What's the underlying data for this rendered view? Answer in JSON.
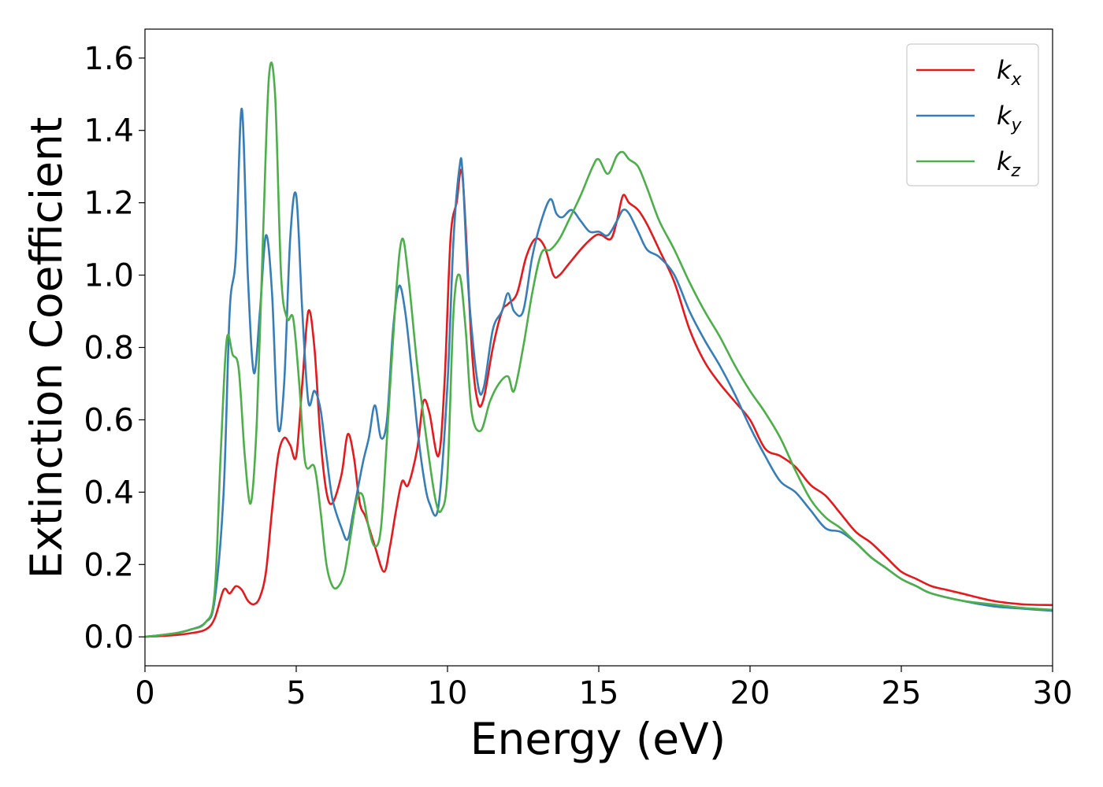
{
  "chart_data": {
    "type": "line",
    "title": "",
    "xlabel": "Energy (eV)",
    "ylabel": "Extinction Coefficient",
    "xlim": [
      0,
      30
    ],
    "ylim": [
      -0.08,
      1.68
    ],
    "xticks": [
      0,
      5,
      10,
      15,
      20,
      25,
      30
    ],
    "xtick_labels": [
      "0",
      "5",
      "10",
      "15",
      "20",
      "25",
      "30"
    ],
    "yticks": [
      0.0,
      0.2,
      0.4,
      0.6,
      0.8,
      1.0,
      1.2,
      1.4,
      1.6
    ],
    "ytick_labels": [
      "0.0",
      "0.2",
      "0.4",
      "0.6",
      "0.8",
      "1.0",
      "1.2",
      "1.4",
      "1.6"
    ],
    "grid": false,
    "legend_position": "top-right",
    "series": [
      {
        "name": "k_x",
        "legend_base": "k",
        "legend_sub": "x",
        "color": "#e41a1c",
        "x": [
          0,
          1.0,
          1.5,
          2.0,
          2.3,
          2.6,
          2.8,
          3.0,
          3.2,
          3.4,
          3.6,
          3.8,
          4.0,
          4.2,
          4.4,
          4.6,
          4.8,
          5.0,
          5.2,
          5.4,
          5.6,
          5.8,
          6.0,
          6.2,
          6.5,
          6.7,
          6.9,
          7.1,
          7.3,
          7.6,
          7.9,
          8.1,
          8.3,
          8.5,
          8.7,
          9.0,
          9.2,
          9.4,
          9.7,
          9.9,
          10.1,
          10.3,
          10.5,
          10.8,
          11.0,
          11.2,
          11.5,
          11.8,
          12.0,
          12.3,
          12.6,
          12.9,
          13.2,
          13.5,
          13.7,
          14.0,
          14.5,
          14.9,
          15.1,
          15.4,
          15.6,
          15.8,
          16.0,
          16.3,
          16.6,
          17.0,
          17.5,
          18.0,
          18.5,
          19.0,
          19.5,
          20.0,
          20.5,
          21.0,
          21.5,
          22.0,
          22.5,
          23.0,
          23.5,
          24.0,
          24.5,
          25.0,
          25.5,
          26.0,
          26.5,
          27.0,
          28.0,
          29.0,
          30.0
        ],
        "y": [
          0.0,
          0.005,
          0.01,
          0.02,
          0.05,
          0.13,
          0.12,
          0.14,
          0.13,
          0.1,
          0.09,
          0.11,
          0.18,
          0.35,
          0.5,
          0.55,
          0.53,
          0.5,
          0.7,
          0.9,
          0.8,
          0.55,
          0.4,
          0.37,
          0.45,
          0.56,
          0.5,
          0.37,
          0.33,
          0.25,
          0.18,
          0.25,
          0.35,
          0.43,
          0.42,
          0.52,
          0.65,
          0.62,
          0.5,
          0.7,
          1.1,
          1.2,
          1.27,
          0.8,
          0.65,
          0.66,
          0.8,
          0.9,
          0.92,
          0.95,
          1.05,
          1.1,
          1.08,
          1.0,
          1.0,
          1.03,
          1.08,
          1.11,
          1.11,
          1.1,
          1.15,
          1.22,
          1.2,
          1.18,
          1.14,
          1.07,
          0.98,
          0.85,
          0.76,
          0.7,
          0.65,
          0.6,
          0.52,
          0.5,
          0.47,
          0.42,
          0.39,
          0.34,
          0.29,
          0.26,
          0.22,
          0.18,
          0.16,
          0.14,
          0.13,
          0.12,
          0.1,
          0.09,
          0.088
        ]
      },
      {
        "name": "k_y",
        "legend_base": "k",
        "legend_sub": "y",
        "color": "#377eb8",
        "x": [
          0,
          1.0,
          1.5,
          2.0,
          2.3,
          2.6,
          2.8,
          3.0,
          3.2,
          3.4,
          3.6,
          3.8,
          4.0,
          4.2,
          4.4,
          4.6,
          4.8,
          5.0,
          5.2,
          5.4,
          5.6,
          5.8,
          6.0,
          6.2,
          6.5,
          6.7,
          6.9,
          7.2,
          7.4,
          7.6,
          7.8,
          8.0,
          8.2,
          8.4,
          8.6,
          8.8,
          9.0,
          9.2,
          9.4,
          9.7,
          10.0,
          10.2,
          10.4,
          10.5,
          10.7,
          11.0,
          11.2,
          11.5,
          11.8,
          12.0,
          12.2,
          12.5,
          12.8,
          13.1,
          13.4,
          13.6,
          13.8,
          14.1,
          14.4,
          14.7,
          15.0,
          15.3,
          15.6,
          15.8,
          16.0,
          16.3,
          16.6,
          17.0,
          17.5,
          18.0,
          18.5,
          19.0,
          19.5,
          20.0,
          20.5,
          21.0,
          21.5,
          22.0,
          22.5,
          23.0,
          23.5,
          24.0,
          24.5,
          25.0,
          25.5,
          26.0,
          27.0,
          28.0,
          29.0,
          30.0
        ],
        "y": [
          0.0,
          0.01,
          0.02,
          0.04,
          0.1,
          0.4,
          0.9,
          1.05,
          1.46,
          1.0,
          0.73,
          0.9,
          1.11,
          0.95,
          0.58,
          0.7,
          1.1,
          1.22,
          0.9,
          0.65,
          0.68,
          0.63,
          0.5,
          0.38,
          0.3,
          0.27,
          0.35,
          0.48,
          0.55,
          0.64,
          0.55,
          0.6,
          0.85,
          0.97,
          0.9,
          0.75,
          0.58,
          0.45,
          0.37,
          0.36,
          0.7,
          1.1,
          1.3,
          1.28,
          0.95,
          0.7,
          0.69,
          0.85,
          0.9,
          0.95,
          0.9,
          0.9,
          1.05,
          1.15,
          1.21,
          1.17,
          1.16,
          1.18,
          1.15,
          1.12,
          1.12,
          1.11,
          1.15,
          1.18,
          1.17,
          1.12,
          1.07,
          1.05,
          1.0,
          0.9,
          0.82,
          0.75,
          0.67,
          0.58,
          0.5,
          0.43,
          0.4,
          0.35,
          0.3,
          0.29,
          0.26,
          0.22,
          0.19,
          0.16,
          0.14,
          0.12,
          0.1,
          0.085,
          0.078,
          0.072
        ]
      },
      {
        "name": "k_z",
        "legend_base": "k",
        "legend_sub": "z",
        "color": "#4daf4a",
        "x": [
          0,
          1.0,
          1.5,
          2.0,
          2.3,
          2.5,
          2.7,
          2.9,
          3.1,
          3.3,
          3.5,
          3.7,
          3.9,
          4.1,
          4.3,
          4.5,
          4.7,
          4.9,
          5.1,
          5.3,
          5.6,
          5.8,
          6.0,
          6.2,
          6.4,
          6.6,
          6.8,
          7.0,
          7.2,
          7.4,
          7.6,
          7.8,
          8.0,
          8.3,
          8.5,
          8.7,
          9.0,
          9.3,
          9.6,
          9.8,
          10.0,
          10.2,
          10.4,
          10.6,
          10.8,
          11.1,
          11.4,
          11.7,
          12.0,
          12.2,
          12.5,
          12.8,
          13.1,
          13.4,
          13.7,
          14.0,
          14.4,
          14.8,
          15.0,
          15.3,
          15.6,
          15.8,
          16.0,
          16.3,
          16.6,
          17.0,
          17.5,
          18.0,
          18.5,
          19.0,
          19.5,
          20.0,
          20.5,
          21.0,
          21.5,
          22.0,
          22.5,
          23.0,
          23.5,
          24.0,
          24.5,
          25.0,
          25.5,
          26.0,
          27.0,
          28.0,
          29.0,
          30.0
        ],
        "y": [
          0.0,
          0.01,
          0.02,
          0.04,
          0.12,
          0.5,
          0.82,
          0.78,
          0.74,
          0.5,
          0.37,
          0.6,
          1.1,
          1.55,
          1.5,
          1.0,
          0.88,
          0.88,
          0.7,
          0.48,
          0.47,
          0.35,
          0.2,
          0.14,
          0.14,
          0.18,
          0.28,
          0.38,
          0.39,
          0.3,
          0.25,
          0.3,
          0.55,
          0.95,
          1.1,
          1.0,
          0.75,
          0.55,
          0.38,
          0.35,
          0.45,
          0.9,
          1.0,
          0.85,
          0.62,
          0.57,
          0.65,
          0.7,
          0.72,
          0.68,
          0.8,
          0.95,
          1.06,
          1.07,
          1.1,
          1.15,
          1.22,
          1.3,
          1.32,
          1.28,
          1.33,
          1.34,
          1.32,
          1.3,
          1.24,
          1.15,
          1.07,
          0.98,
          0.9,
          0.83,
          0.75,
          0.68,
          0.62,
          0.55,
          0.46,
          0.38,
          0.33,
          0.3,
          0.26,
          0.22,
          0.19,
          0.16,
          0.14,
          0.12,
          0.1,
          0.09,
          0.08,
          0.075
        ]
      }
    ]
  }
}
